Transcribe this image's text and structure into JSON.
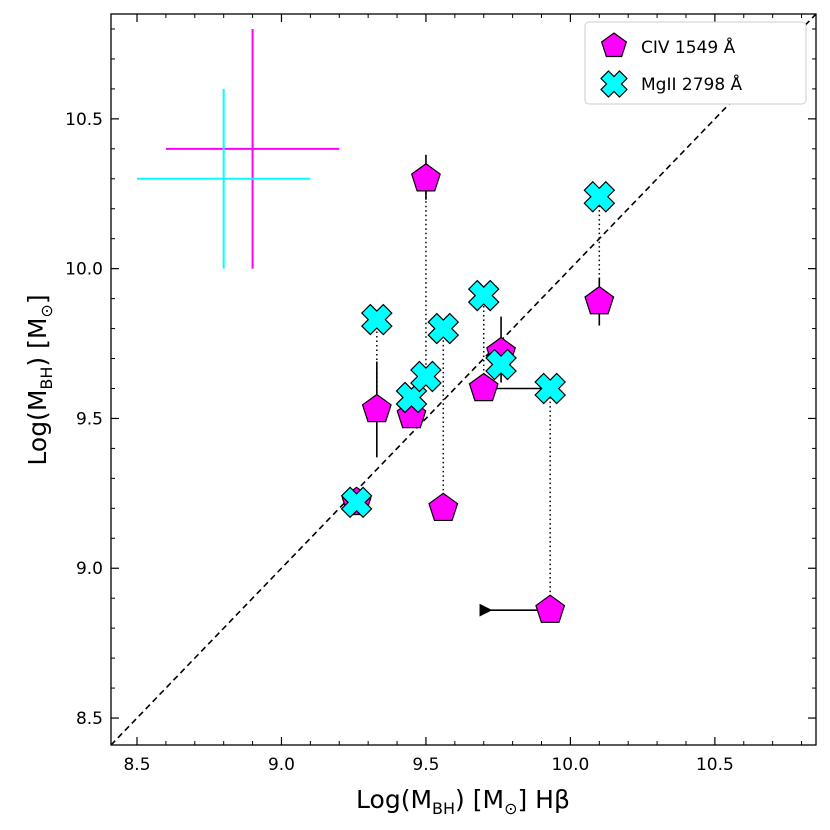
{
  "chart_data": {
    "type": "scatter",
    "xlabel": {
      "main": "Log(M",
      "sub": "BH",
      "unit": ") [M",
      "sun": "⊙",
      "suffix": "] Hβ"
    },
    "ylabel": {
      "main": "Log(M",
      "sub": "BH",
      "unit": ") [M",
      "sun": "⊙",
      "suffix": "]"
    },
    "xlim": [
      8.41,
      10.85
    ],
    "ylim": [
      8.41,
      10.85
    ],
    "xticks": [
      {
        "value": 8.5,
        "label": "8.5"
      },
      {
        "value": 9.0,
        "label": "9.0"
      },
      {
        "value": 9.5,
        "label": "9.5"
      },
      {
        "value": 10.0,
        "label": "10.0"
      },
      {
        "value": 10.5,
        "label": "10.5"
      }
    ],
    "yticks": [
      {
        "value": 8.5,
        "label": "8.5"
      },
      {
        "value": 9.0,
        "label": "9.0"
      },
      {
        "value": 9.5,
        "label": "9.5"
      },
      {
        "value": 10.0,
        "label": "10.0"
      },
      {
        "value": 10.5,
        "label": "10.5"
      }
    ],
    "one_to_one_line": true,
    "legend_position": "top-right",
    "series": [
      {
        "name": "CIV 1549 Å",
        "marker": "pentagon",
        "color": "#ff00ff",
        "points": [
          {
            "x": 9.26,
            "y": 9.22
          },
          {
            "x": 9.33,
            "y": 9.53
          },
          {
            "x": 9.45,
            "y": 9.51
          },
          {
            "x": 9.5,
            "y": 10.3
          },
          {
            "x": 9.56,
            "y": 9.2
          },
          {
            "x": 9.7,
            "y": 9.6
          },
          {
            "x": 9.76,
            "y": 9.72
          },
          {
            "x": 9.93,
            "y": 8.86
          },
          {
            "x": 10.1,
            "y": 9.89
          }
        ]
      },
      {
        "name": "MgII 2798 Å",
        "marker": "x-filled",
        "color": "#00ffff",
        "points": [
          {
            "x": 9.26,
            "y": 9.22
          },
          {
            "x": 9.33,
            "y": 9.83
          },
          {
            "x": 9.45,
            "y": 9.57
          },
          {
            "x": 9.5,
            "y": 9.64
          },
          {
            "x": 9.56,
            "y": 9.8
          },
          {
            "x": 9.7,
            "y": 9.91
          },
          {
            "x": 9.76,
            "y": 9.68
          },
          {
            "x": 9.93,
            "y": 9.6
          },
          {
            "x": 10.1,
            "y": 10.24
          }
        ]
      }
    ],
    "connectors": [
      {
        "x": 9.33,
        "y1": 9.53,
        "y2": 9.83
      },
      {
        "x": 9.5,
        "y1": 10.3,
        "y2": 9.64
      },
      {
        "x": 9.56,
        "y1": 9.2,
        "y2": 9.8
      },
      {
        "x": 9.7,
        "y1": 9.6,
        "y2": 9.91
      },
      {
        "x": 9.93,
        "y1": 8.86,
        "y2": 9.6
      },
      {
        "x": 10.1,
        "y1": 9.89,
        "y2": 10.24
      }
    ],
    "vertical_error_bars": [
      {
        "x": 9.33,
        "y1": 9.37,
        "y2": 9.69
      },
      {
        "x": 9.5,
        "y1": 10.23,
        "y2": 10.38
      },
      {
        "x": 9.76,
        "y1": 9.62,
        "y2": 9.84
      },
      {
        "x": 10.1,
        "y1": 9.81,
        "y2": 9.97
      }
    ],
    "upper_limit_arrows": [
      {
        "x_from": 9.92,
        "x_to": 9.7,
        "y": 8.86
      },
      {
        "x_from": 9.92,
        "x_to": 9.7,
        "y": 9.6
      }
    ],
    "typical_error_crosses": [
      {
        "series": "CIV 1549 Å",
        "color": "#ff00ff",
        "x": 8.9,
        "y": 10.4,
        "x_range": [
          8.6,
          9.2
        ],
        "y_range": [
          10.0,
          10.8
        ]
      },
      {
        "series": "MgII 2798 Å",
        "color": "#00ffff",
        "x": 8.8,
        "y": 10.3,
        "x_range": [
          8.5,
          9.1
        ],
        "y_range": [
          10.0,
          10.6
        ]
      }
    ]
  }
}
